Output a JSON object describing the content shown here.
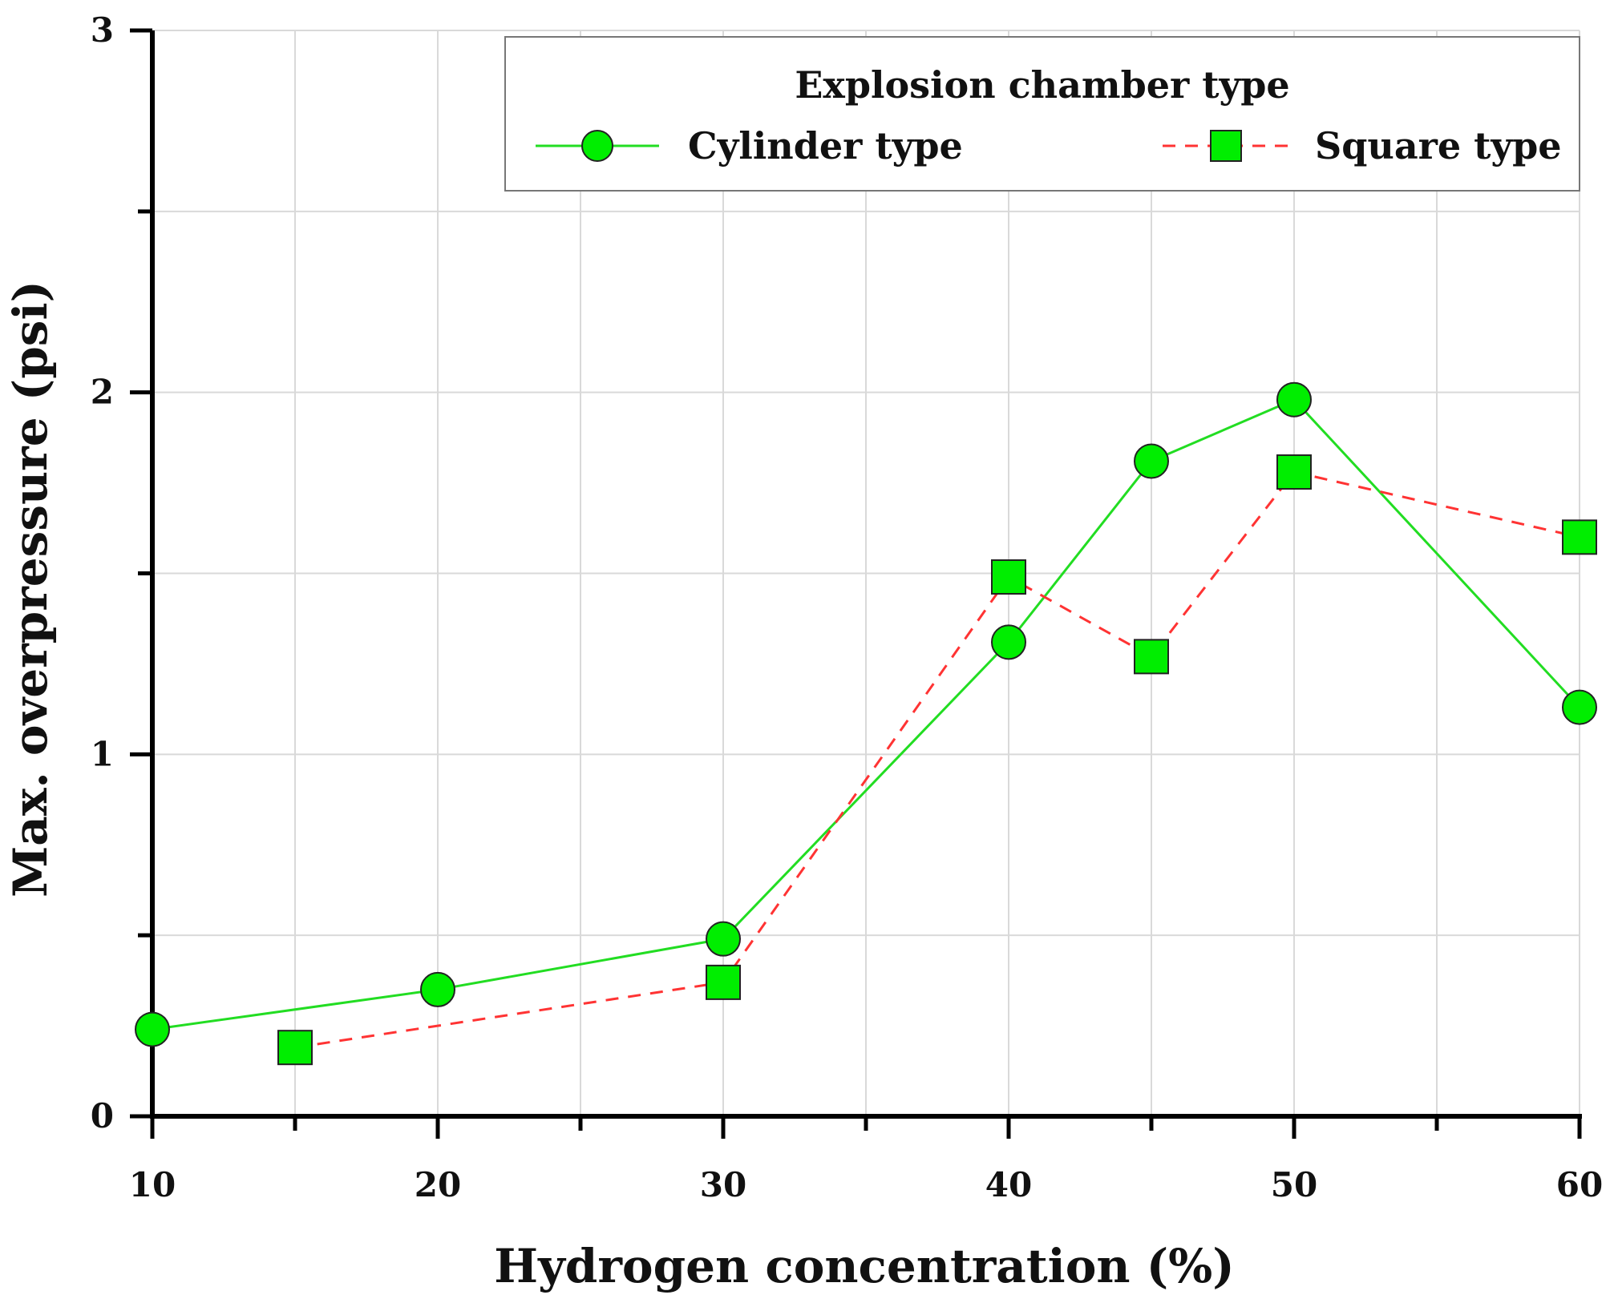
{
  "chart_data": {
    "type": "line",
    "title": "",
    "xlabel": "Hydrogen concentration (%)",
    "ylabel": "Max. overpressure (psi)",
    "xlim": [
      10,
      60
    ],
    "ylim": [
      0,
      3
    ],
    "x_ticks": [
      10,
      20,
      30,
      40,
      50,
      60
    ],
    "x_tick_labels": [
      "10",
      "20",
      "30",
      "40",
      "50",
      "60"
    ],
    "y_ticks": [
      0,
      1,
      2,
      3
    ],
    "y_tick_labels": [
      "0",
      "1",
      "2",
      "3"
    ],
    "grid": true,
    "legend": {
      "title": "Explosion chamber type",
      "placement": "top-right"
    },
    "series": [
      {
        "name": "Cylinder type",
        "marker": "circle",
        "line_style": "solid",
        "color": "#22dd22",
        "marker_fill": "#00ee00",
        "x": [
          10,
          20,
          30,
          40,
          45,
          50,
          60
        ],
        "y": [
          0.24,
          0.35,
          0.49,
          1.31,
          1.81,
          1.98,
          1.13
        ]
      },
      {
        "name": "Square type",
        "marker": "square",
        "line_style": "dashed",
        "color": "#ff3333",
        "marker_fill": "#00ee00",
        "x": [
          15,
          30,
          40,
          45,
          50,
          60
        ],
        "y": [
          0.19,
          0.37,
          1.49,
          1.27,
          1.78,
          1.6
        ]
      }
    ]
  }
}
